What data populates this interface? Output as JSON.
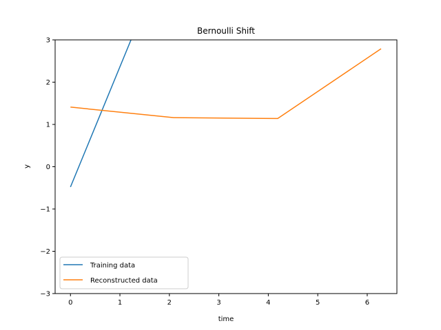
{
  "chart_data": {
    "type": "line",
    "title": "Bernoulli Shift",
    "xlabel": "time",
    "ylabel": "y",
    "xlim": [
      -0.31,
      6.6
    ],
    "ylim": [
      -3,
      3
    ],
    "xticks": [
      0,
      1,
      2,
      3,
      4,
      5,
      6
    ],
    "yticks": [
      -3,
      -2,
      -1,
      0,
      1,
      2,
      3
    ],
    "xtick_labels": [
      "0",
      "1",
      "2",
      "3",
      "4",
      "5",
      "6"
    ],
    "ytick_labels": [
      "−3",
      "−2",
      "−1",
      "0",
      "1",
      "2",
      "3"
    ],
    "grid": false,
    "legend_position": "lower-left",
    "series": [
      {
        "name": "Training data",
        "color": "#1f77b4",
        "x": [
          0,
          1.4
        ],
        "y": [
          -0.48,
          3.5
        ]
      },
      {
        "name": "Reconstructed data",
        "color": "#ff7f0e",
        "x": [
          0,
          2.09,
          4.19,
          6.28
        ],
        "y": [
          1.41,
          1.16,
          1.14,
          2.79
        ]
      }
    ]
  }
}
